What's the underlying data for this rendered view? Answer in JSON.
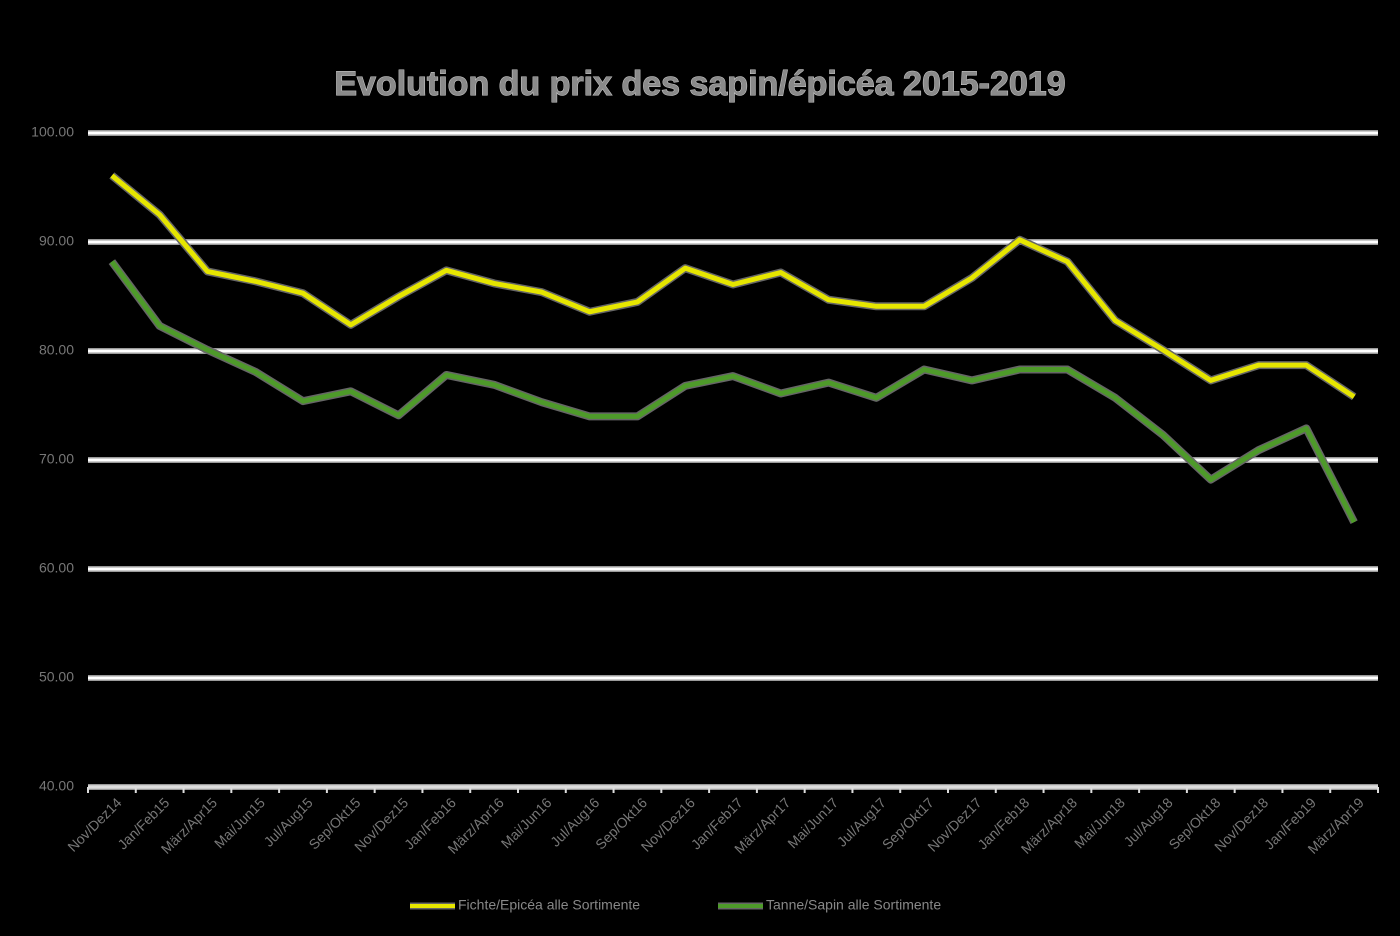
{
  "chart_data": {
    "type": "line",
    "title": "Evolution du prix des sapin/épicéa 2015-2019",
    "categories": [
      "Nov/Dez14",
      "Jan/Feb15",
      "März/Apr15",
      "Mai/Jun15",
      "Jul/Aug15",
      "Sep/Okt15",
      "Nov/Dez15",
      "Jan/Feb16",
      "März/Apr16",
      "Mai/Jun16",
      "Jul/Aug16",
      "Sep/Okt16",
      "Nov/Dez16",
      "Jan/Feb17",
      "März/Apr17",
      "Mai/Jun17",
      "Jul/Aug17",
      "Sep/Okt17",
      "Nov/Dez17",
      "Jan/Feb18",
      "März/Apr18",
      "Mai/Jun18",
      "Jul/Aug18",
      "Sep/Okt18",
      "Nov/Dez18",
      "Jan/Feb19",
      "März/Apr19"
    ],
    "series": [
      {
        "name": "Fichte/Epicéa alle Sortimente",
        "color": "#e6e600",
        "values": [
          96.1,
          92.5,
          87.3,
          86.4,
          85.3,
          82.4,
          85.0,
          87.4,
          86.2,
          85.4,
          83.6,
          84.5,
          87.6,
          86.1,
          87.2,
          84.7,
          84.1,
          84.1,
          86.7,
          90.2,
          88.2,
          82.8,
          80.1,
          77.3,
          78.7,
          78.7,
          75.8
        ]
      },
      {
        "name": "Tanne/Sapin alle Sortimente",
        "color": "#4e9a2a",
        "values": [
          88.2,
          82.3,
          80.1,
          78.1,
          75.4,
          76.3,
          74.1,
          77.8,
          76.9,
          75.3,
          74.0,
          74.0,
          76.8,
          77.7,
          76.1,
          77.1,
          75.7,
          78.3,
          77.3,
          78.3,
          78.3,
          75.7,
          72.3,
          68.2,
          70.9,
          72.9,
          64.3
        ]
      }
    ],
    "ylim": [
      40,
      100
    ],
    "yticks": [
      {
        "value": 40,
        "label": "40.00"
      },
      {
        "value": 50,
        "label": "50.00"
      },
      {
        "value": 60,
        "label": "60.00"
      },
      {
        "value": 70,
        "label": "70.00"
      },
      {
        "value": 80,
        "label": "80.00"
      },
      {
        "value": 90,
        "label": "90.00"
      },
      {
        "value": 100,
        "label": "100.00"
      }
    ],
    "grid": true,
    "legend": "bottom"
  }
}
